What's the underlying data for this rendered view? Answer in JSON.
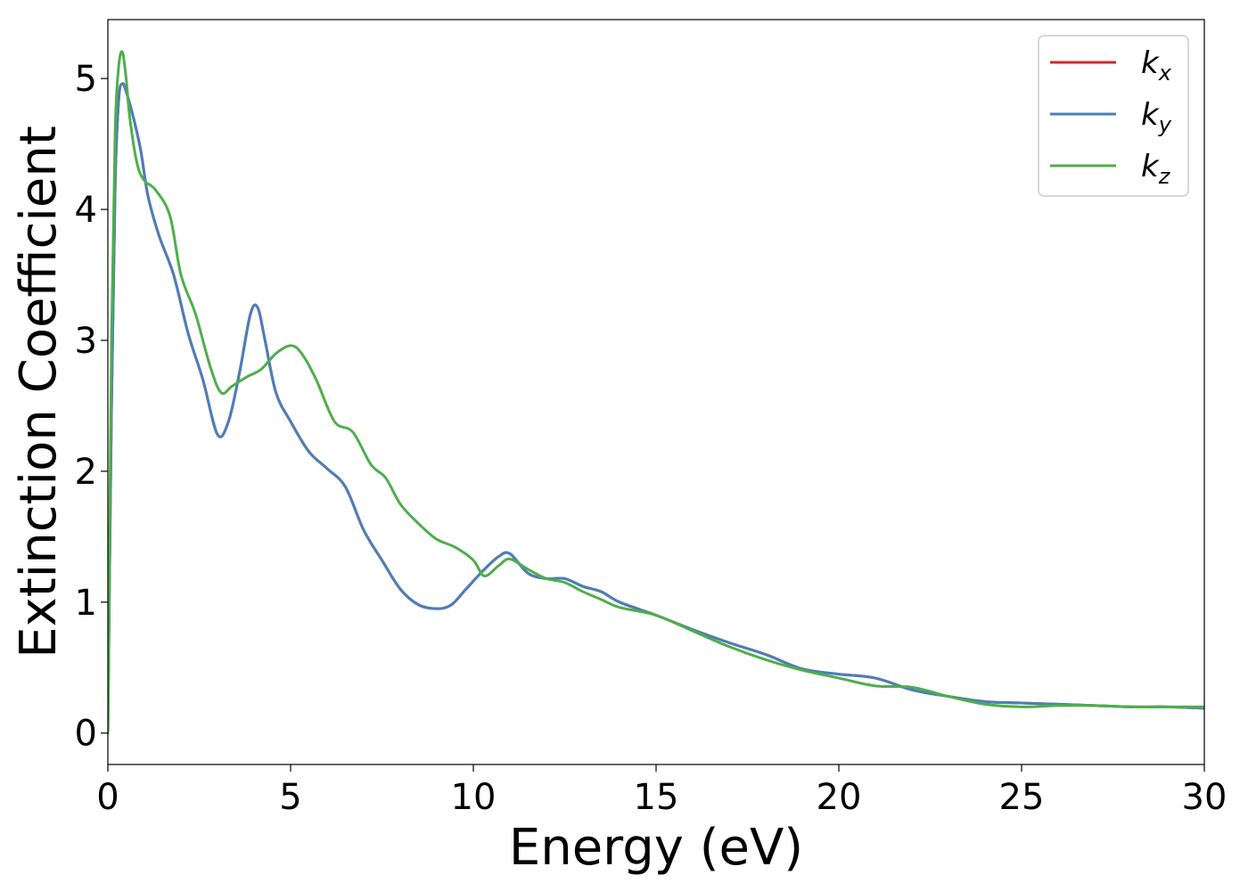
{
  "chart_data": {
    "type": "line",
    "xlabel": "Energy (eV)",
    "ylabel": "Extinction Coefficient",
    "xlim": [
      0,
      30
    ],
    "ylim": [
      -0.24,
      5.45
    ],
    "xticks": [
      "0",
      "5",
      "10",
      "15",
      "20",
      "25",
      "30"
    ],
    "yticks": [
      "0",
      "1",
      "2",
      "3",
      "4",
      "5"
    ],
    "grid": false,
    "legend_position": "top-right",
    "series": [
      {
        "name": "k_x",
        "label_main": "k",
        "label_sub": "x",
        "color": "#d62728",
        "x": [
          0,
          0.1,
          0.2,
          0.3,
          0.4,
          0.5,
          0.7,
          0.9,
          1.1,
          1.4,
          1.8,
          2.2,
          2.6,
          3.0,
          3.3,
          3.6,
          3.9,
          4.1,
          4.3,
          4.6,
          5.0,
          5.5,
          6.0,
          6.5,
          7.0,
          7.5,
          8.0,
          8.5,
          9.0,
          9.4,
          9.8,
          10.3,
          10.7,
          11.0,
          11.5,
          12.0,
          12.5,
          13.0,
          13.5,
          14.0,
          15.0,
          16.0,
          17.0,
          18.0,
          19.0,
          20.0,
          21.0,
          22.0,
          23.0,
          24.0,
          25.0,
          26.0,
          27.0,
          28.0,
          29.0,
          30.0
        ],
        "y": [
          0,
          2.5,
          4.2,
          4.85,
          4.96,
          4.9,
          4.7,
          4.45,
          4.1,
          3.8,
          3.5,
          3.05,
          2.7,
          2.28,
          2.38,
          2.75,
          3.2,
          3.25,
          3.0,
          2.6,
          2.38,
          2.15,
          2.02,
          1.88,
          1.55,
          1.32,
          1.1,
          0.98,
          0.95,
          0.98,
          1.1,
          1.25,
          1.35,
          1.37,
          1.22,
          1.18,
          1.18,
          1.12,
          1.08,
          1.0,
          0.9,
          0.79,
          0.69,
          0.6,
          0.49,
          0.45,
          0.42,
          0.33,
          0.28,
          0.24,
          0.23,
          0.22,
          0.21,
          0.2,
          0.2,
          0.19
        ]
      },
      {
        "name": "k_y",
        "label_main": "k",
        "label_sub": "y",
        "color": "#4a7fba",
        "x": [
          0,
          0.1,
          0.2,
          0.3,
          0.4,
          0.5,
          0.7,
          0.9,
          1.1,
          1.4,
          1.8,
          2.2,
          2.6,
          3.0,
          3.3,
          3.6,
          3.9,
          4.1,
          4.3,
          4.6,
          5.0,
          5.5,
          6.0,
          6.5,
          7.0,
          7.5,
          8.0,
          8.5,
          9.0,
          9.4,
          9.8,
          10.3,
          10.7,
          11.0,
          11.5,
          12.0,
          12.5,
          13.0,
          13.5,
          14.0,
          15.0,
          16.0,
          17.0,
          18.0,
          19.0,
          20.0,
          21.0,
          22.0,
          23.0,
          24.0,
          25.0,
          26.0,
          27.0,
          28.0,
          29.0,
          30.0
        ],
        "y": [
          0,
          2.5,
          4.2,
          4.85,
          4.96,
          4.9,
          4.7,
          4.45,
          4.1,
          3.8,
          3.5,
          3.05,
          2.7,
          2.28,
          2.38,
          2.75,
          3.2,
          3.25,
          3.0,
          2.6,
          2.38,
          2.15,
          2.02,
          1.88,
          1.55,
          1.32,
          1.1,
          0.98,
          0.95,
          0.98,
          1.1,
          1.25,
          1.35,
          1.37,
          1.22,
          1.18,
          1.18,
          1.12,
          1.08,
          1.0,
          0.9,
          0.79,
          0.69,
          0.6,
          0.49,
          0.45,
          0.42,
          0.33,
          0.28,
          0.24,
          0.23,
          0.22,
          0.21,
          0.2,
          0.2,
          0.19
        ]
      },
      {
        "name": "k_z",
        "label_main": "k",
        "label_sub": "z",
        "color": "#4daf4a",
        "x": [
          0,
          0.1,
          0.2,
          0.3,
          0.4,
          0.5,
          0.6,
          0.8,
          1.0,
          1.3,
          1.7,
          2.0,
          2.4,
          2.8,
          3.1,
          3.4,
          3.8,
          4.2,
          4.6,
          5.0,
          5.3,
          5.7,
          6.2,
          6.7,
          7.2,
          7.6,
          8.0,
          8.5,
          9.0,
          9.5,
          10.0,
          10.3,
          10.7,
          11.0,
          11.5,
          12.0,
          12.5,
          13.0,
          13.5,
          14.0,
          15.0,
          16.0,
          17.0,
          18.0,
          19.0,
          20.0,
          21.0,
          22.0,
          23.0,
          24.0,
          25.0,
          26.0,
          27.0,
          28.0,
          29.0,
          30.0
        ],
        "y": [
          0,
          3.0,
          4.6,
          5.1,
          5.2,
          5.0,
          4.7,
          4.35,
          4.22,
          4.15,
          3.95,
          3.5,
          3.2,
          2.8,
          2.6,
          2.65,
          2.72,
          2.78,
          2.9,
          2.96,
          2.9,
          2.7,
          2.38,
          2.3,
          2.05,
          1.95,
          1.75,
          1.6,
          1.48,
          1.42,
          1.32,
          1.2,
          1.28,
          1.33,
          1.25,
          1.18,
          1.15,
          1.08,
          1.02,
          0.96,
          0.9,
          0.78,
          0.66,
          0.56,
          0.48,
          0.42,
          0.36,
          0.35,
          0.28,
          0.22,
          0.2,
          0.21,
          0.21,
          0.2,
          0.2,
          0.2
        ]
      }
    ]
  }
}
